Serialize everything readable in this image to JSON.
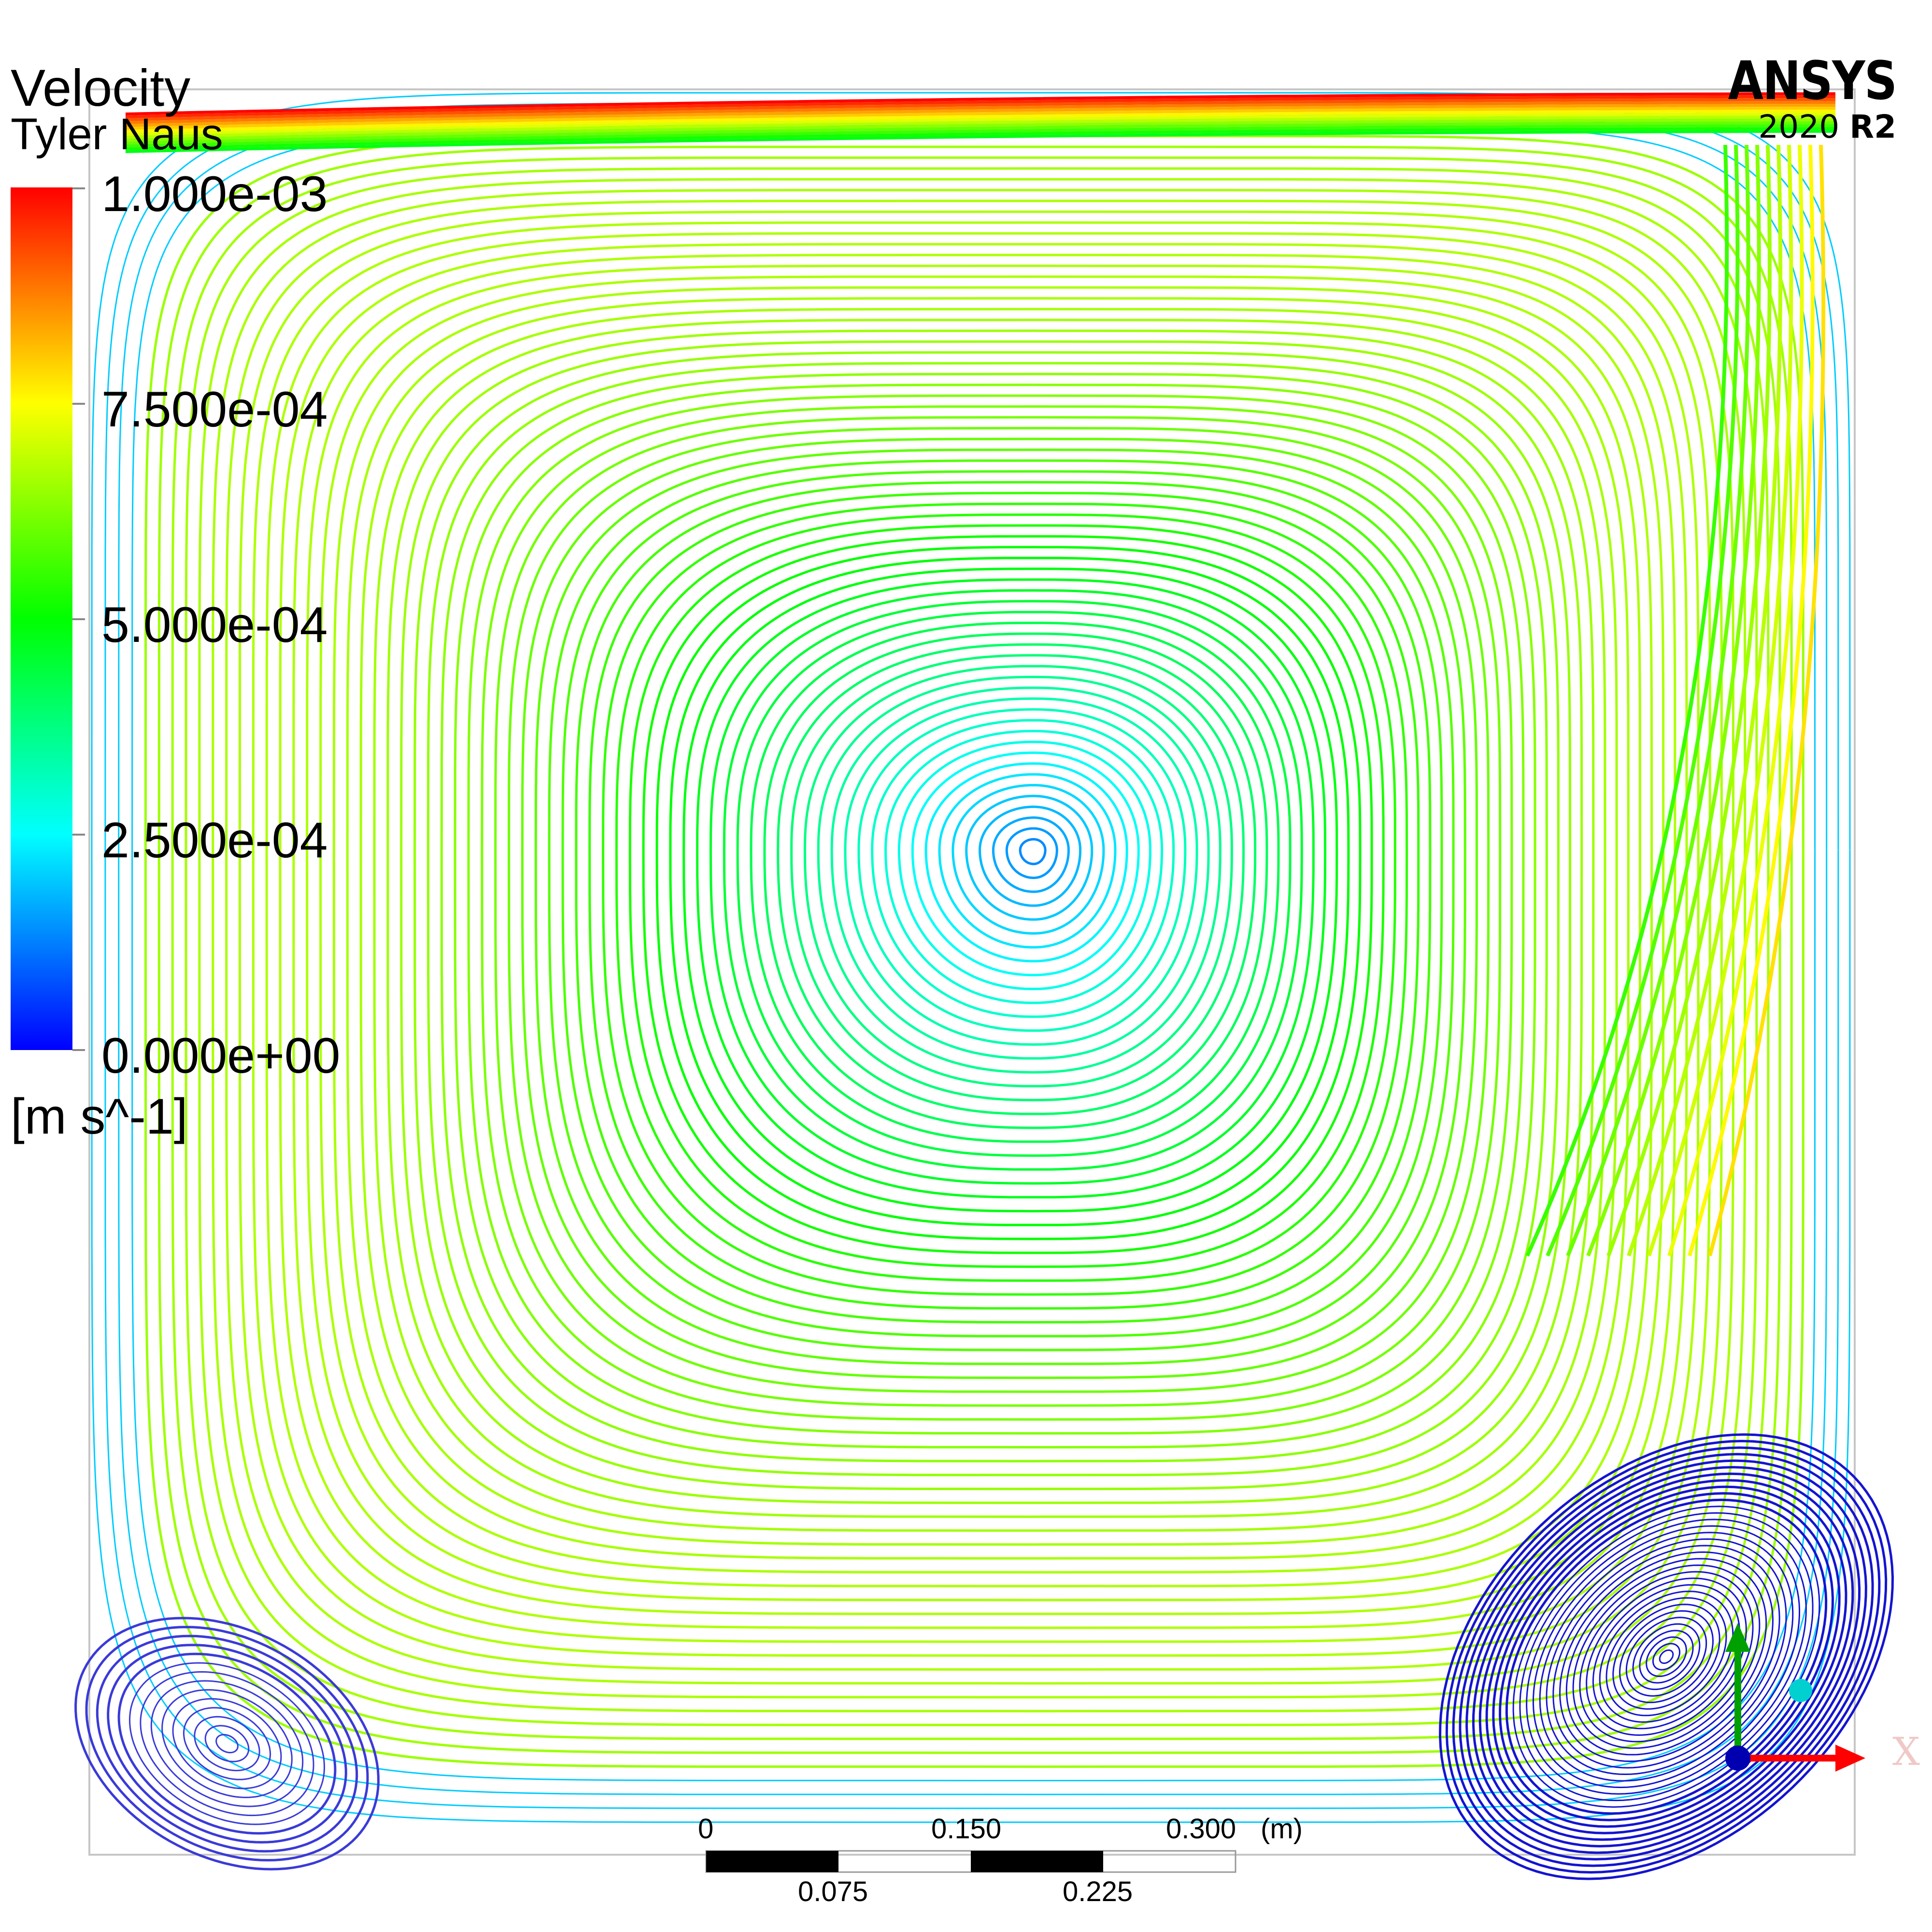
{
  "legend": {
    "title": "Velocity",
    "subtitle": "Tyler Naus",
    "ticks": [
      "1.000e-03",
      "7.500e-04",
      "5.000e-04",
      "2.500e-04",
      "0.000e+00"
    ],
    "units": "[m s^-1]",
    "colormap": [
      "#ff0000",
      "#ff8000",
      "#ffff00",
      "#80ff00",
      "#00ff00",
      "#00ff80",
      "#00ffff",
      "#0080ff",
      "#0000ff"
    ],
    "range": [
      0,
      0.001
    ]
  },
  "brand": {
    "name": "ANSYS",
    "year": "2020",
    "release": "R2"
  },
  "scale_bar": {
    "top_labels": [
      "0",
      "0.150",
      "0.300"
    ],
    "unit": "(m)",
    "bottom_labels": [
      "0.075",
      "0.225"
    ]
  },
  "axes": {
    "x_label": "X",
    "x_color": "#ff0000",
    "y_color": "#00a000",
    "z_color": "#00d8d8"
  },
  "colors": {
    "domain_border": "#bdbdbd",
    "secondary_vortex": "#1010d0"
  }
}
